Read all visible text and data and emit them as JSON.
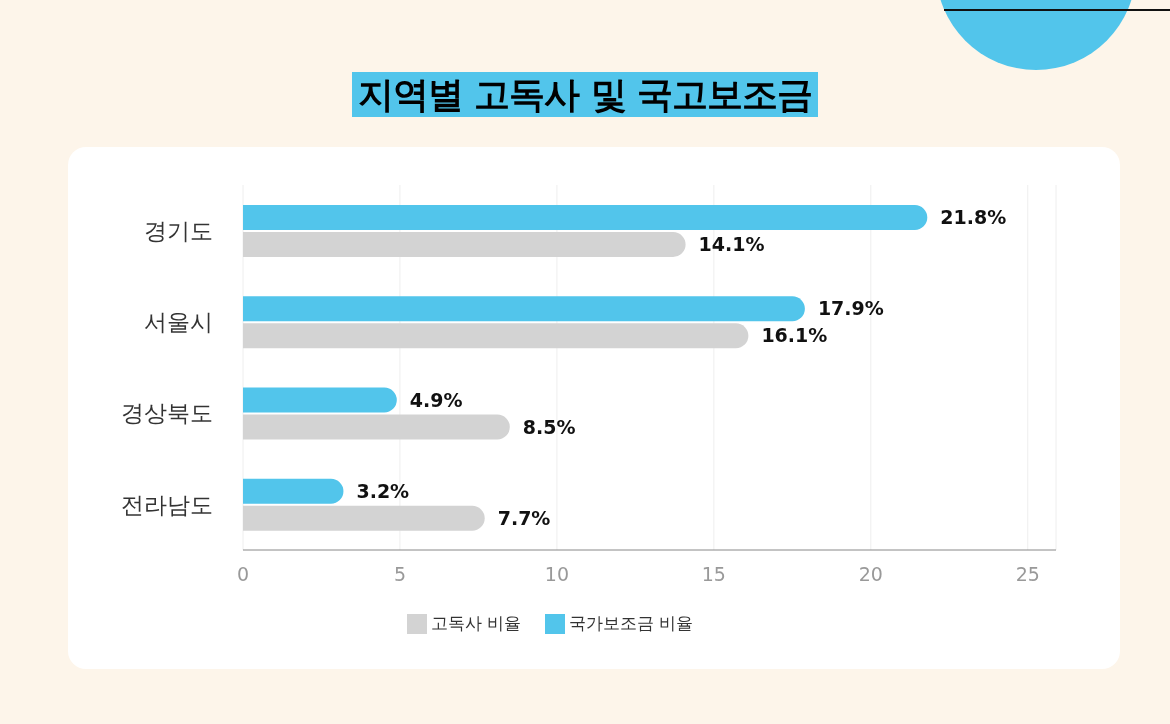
{
  "chart_data": {
    "type": "bar",
    "orientation": "horizontal",
    "title": "지역별 고독사 및 국고보조금",
    "categories": [
      "경기도",
      "서울시",
      "경상북도",
      "전라남도"
    ],
    "series": [
      {
        "name": "국가보조금 비율",
        "color": "#52c5eb",
        "values": [
          21.8,
          17.9,
          4.9,
          3.2
        ],
        "value_labels": [
          "21.8%",
          "17.9%",
          "4.9%",
          "3.2%"
        ]
      },
      {
        "name": "고독사 비율",
        "color": "#d3d3d3",
        "values": [
          14.1,
          16.1,
          8.5,
          7.7
        ],
        "value_labels": [
          "14.1%",
          "16.1%",
          "8.5%",
          "7.7%"
        ]
      }
    ],
    "xlim": [
      0,
      25.9
    ],
    "xticks": [
      0,
      5,
      10,
      15,
      20,
      25
    ],
    "grid": "x",
    "legend": "bottom"
  }
}
